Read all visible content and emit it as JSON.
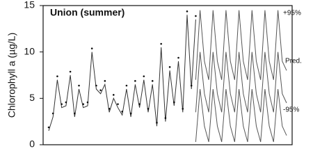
{
  "chart_data": {
    "type": "line",
    "annotation": "Union (summer)",
    "y_label": "Chlorophyll a (µg/L)",
    "band_labels": [
      "+95%",
      "Pred.",
      "-95%"
    ],
    "categories": [
      null,
      null,
      null,
      null,
      null,
      null,
      null,
      null,
      null,
      null,
      null,
      null,
      null,
      null,
      null,
      null,
      null,
      null,
      null,
      null,
      null,
      null,
      null,
      null,
      null,
      null,
      null,
      null,
      null,
      null,
      null,
      null,
      null,
      null,
      null,
      null,
      null,
      null,
      null,
      null,
      null,
      null,
      null,
      null,
      null,
      null,
      null,
      null,
      null,
      null,
      null,
      null,
      null,
      null,
      null,
      null
    ],
    "ylim": [
      0,
      15
    ],
    "yticks": [
      0,
      5,
      10,
      15
    ],
    "series": [
      {
        "color": "#333333",
        "markers": true,
        "values": [
          1.5,
          3,
          7,
          4,
          4.2,
          7.5,
          3,
          6,
          4,
          4.2,
          10,
          6,
          5.5,
          6.5,
          3.5,
          5,
          4,
          3.2,
          6,
          3,
          6.5,
          4,
          7,
          3.5,
          6.5,
          2,
          10.5,
          2.5,
          8,
          4.2,
          9,
          3.5,
          14,
          6,
          13.5,
          null,
          null,
          null,
          null,
          null,
          null,
          null,
          null,
          null,
          null,
          null,
          null,
          null,
          null,
          null,
          null,
          null,
          null,
          null,
          null,
          null
        ]
      },
      {
        "color": "#555555",
        "markers": false,
        "values": [
          null,
          null,
          null,
          null,
          null,
          null,
          null,
          null,
          null,
          null,
          null,
          null,
          null,
          null,
          null,
          null,
          null,
          null,
          null,
          null,
          null,
          null,
          null,
          null,
          null,
          null,
          null,
          null,
          null,
          null,
          null,
          null,
          null,
          null,
          7,
          14.5,
          9,
          7,
          14.5,
          9,
          7,
          14.5,
          9,
          7,
          14.5,
          9,
          7,
          14.5,
          9,
          7,
          14.5,
          9,
          7,
          14.5,
          9,
          8
        ]
      },
      {
        "color": "#555555",
        "markers": false,
        "values": [
          null,
          null,
          null,
          null,
          null,
          null,
          null,
          null,
          null,
          null,
          null,
          null,
          null,
          null,
          null,
          null,
          null,
          null,
          null,
          null,
          null,
          null,
          null,
          null,
          null,
          null,
          null,
          null,
          null,
          null,
          null,
          null,
          null,
          null,
          3.5,
          10,
          5.5,
          3.5,
          10,
          5.5,
          3.5,
          10,
          5.5,
          3.5,
          10,
          5.5,
          3.5,
          10,
          5.5,
          3.5,
          10,
          5.5,
          3.5,
          10,
          5.5,
          4.5
        ]
      },
      {
        "color": "#555555",
        "markers": false,
        "values": [
          null,
          null,
          null,
          null,
          null,
          null,
          null,
          null,
          null,
          null,
          null,
          null,
          null,
          null,
          null,
          null,
          null,
          null,
          null,
          null,
          null,
          null,
          null,
          null,
          null,
          null,
          null,
          null,
          null,
          null,
          null,
          null,
          null,
          null,
          0.3,
          6,
          2,
          0.3,
          6,
          2,
          0.3,
          6,
          2,
          0.3,
          6,
          2,
          0.3,
          6,
          2,
          0.3,
          6,
          2,
          0.3,
          6,
          2,
          1
        ]
      }
    ]
  }
}
